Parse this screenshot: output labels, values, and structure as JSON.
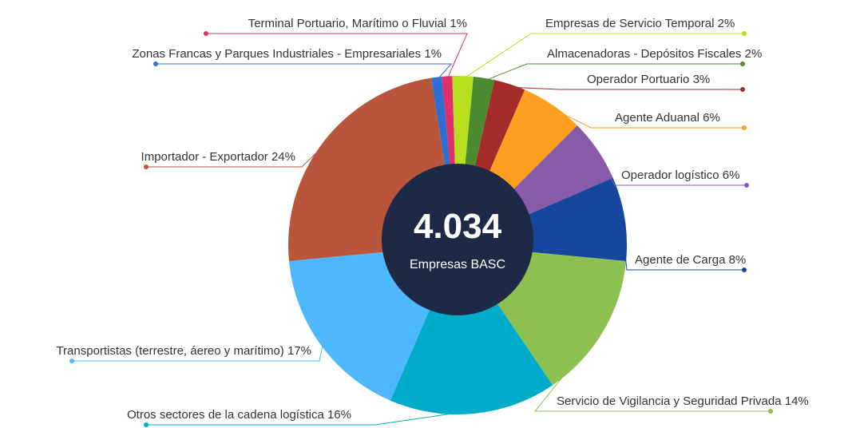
{
  "chart_data": {
    "type": "pie",
    "center_value": "4.034",
    "center_label": "Empresas BASC",
    "categories": [
      "Zonas Francas y Parques Industriales - Empresariales",
      "Terminal Portuario, Marítimo o Fluvial",
      "Empresas de Servicio Temporal",
      "Almacenadoras - Depósitos Fiscales",
      "Operador Portuario",
      "Agente Aduanal",
      "Operador logístico",
      "Agente de Carga",
      "Servicio de Vigilancia y Seguridad Privada",
      "Otros sectores de la cadena logística",
      "Transportistas (terrestre, áereo y marítimo)",
      "Importador - Exportador"
    ],
    "values": [
      1,
      1,
      2,
      2,
      3,
      6,
      6,
      8,
      14,
      16,
      17,
      24
    ],
    "value_labels": [
      "1%",
      "1%",
      "2%",
      "2%",
      "3%",
      "6%",
      "6%",
      "8%",
      "14%",
      "16%",
      "17%",
      "24%"
    ],
    "colors": [
      "#2e6fd4",
      "#e0306a",
      "#b6e01e",
      "#4e8a30",
      "#a52a2a",
      "#ffa020",
      "#8a5aaa",
      "#17469e",
      "#8cc152",
      "#00acc9",
      "#4db8ff",
      "#b9553a"
    ]
  }
}
